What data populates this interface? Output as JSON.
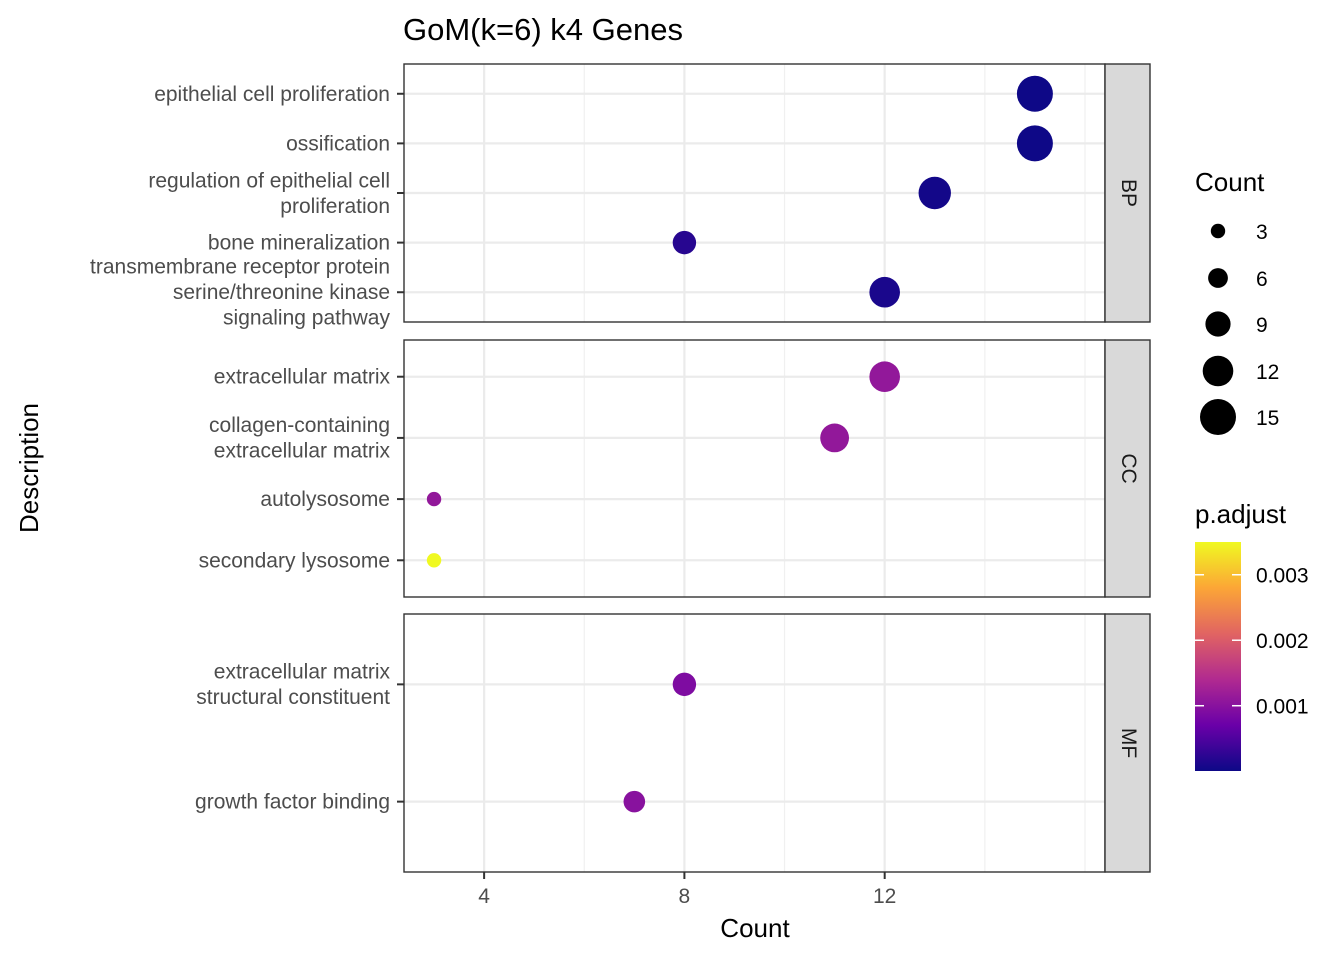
{
  "chart_data": {
    "type": "scatter",
    "title": "GoM(k=6) k4 Genes",
    "xlabel": "Count",
    "ylabel": "Description",
    "xlim": [
      2.4,
      16.4
    ],
    "x_ticks": [
      4,
      8,
      12
    ],
    "grid": true,
    "panels": [
      {
        "facet": "BP",
        "terms": [
          {
            "label": [
              "epithelial cell proliferation"
            ],
            "count": 15,
            "p_adjust": 1e-05
          },
          {
            "label": [
              "ossification"
            ],
            "count": 15,
            "p_adjust": 1e-05
          },
          {
            "label": [
              "regulation of epithelial cell",
              "proliferation"
            ],
            "count": 13,
            "p_adjust": 5e-05
          },
          {
            "label": [
              "bone mineralization"
            ],
            "count": 8,
            "p_adjust": 0.0002
          },
          {
            "label": [
              "transmembrane receptor protein",
              "serine/threonine kinase",
              "signaling pathway"
            ],
            "count": 12,
            "p_adjust": 0.0001
          }
        ]
      },
      {
        "facet": "CC",
        "terms": [
          {
            "label": [
              "extracellular matrix"
            ],
            "count": 12,
            "p_adjust": 0.0011
          },
          {
            "label": [
              "collagen-containing",
              "extracellular matrix"
            ],
            "count": 11,
            "p_adjust": 0.0011
          },
          {
            "label": [
              "autolysosome"
            ],
            "count": 3,
            "p_adjust": 0.0011
          },
          {
            "label": [
              "secondary lysosome"
            ],
            "count": 3,
            "p_adjust": 0.0035
          }
        ]
      },
      {
        "facet": "MF",
        "terms": [
          {
            "label": [
              "extracellular matrix",
              "structural constituent"
            ],
            "count": 8,
            "p_adjust": 0.0009
          },
          {
            "label": [
              "growth factor binding"
            ],
            "count": 7,
            "p_adjust": 0.001
          }
        ]
      }
    ],
    "size_legend": {
      "title": "Count",
      "values": [
        3,
        6,
        9,
        12,
        15
      ]
    },
    "color_legend": {
      "title": "p.adjust",
      "ticks": [
        {
          "value": 0.001,
          "label": "0.001"
        },
        {
          "value": 0.002,
          "label": "0.002"
        },
        {
          "value": 0.003,
          "label": "0.003"
        }
      ],
      "range": [
        3.2e-06,
        0.0035
      ],
      "colors": [
        "#0d0887",
        "#6a00a8",
        "#b12a90",
        "#e16462",
        "#fca636",
        "#f0f921"
      ]
    },
    "legend_position": "right"
  }
}
